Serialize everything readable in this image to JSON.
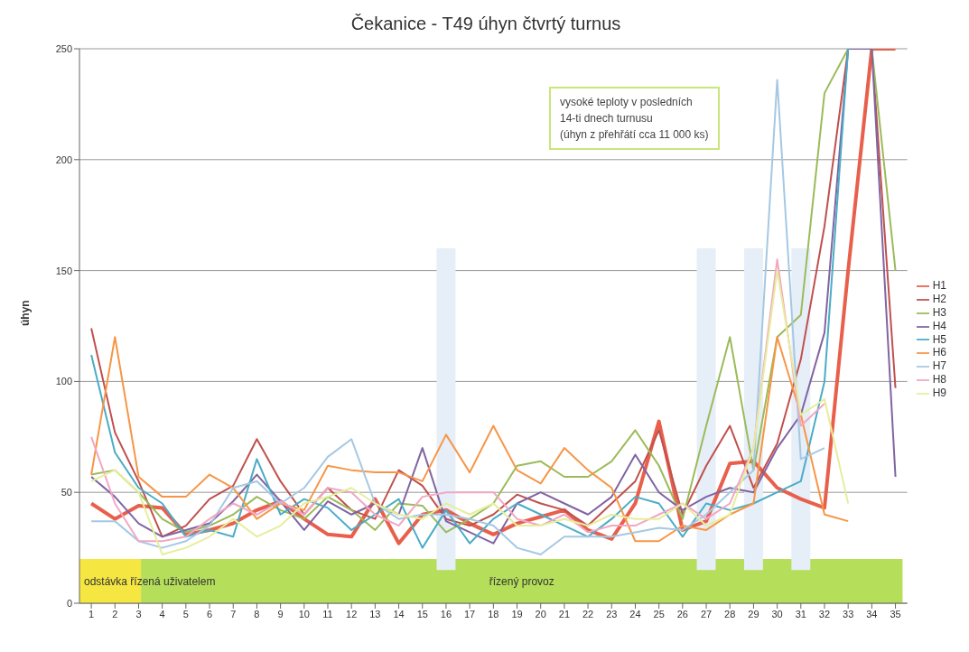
{
  "chart_data": {
    "type": "line",
    "title": "Čekanice - T49 úhyn čtvrtý turnus",
    "ylabel": "úhyn",
    "x": [
      1,
      2,
      3,
      4,
      5,
      6,
      7,
      8,
      9,
      10,
      11,
      12,
      13,
      14,
      15,
      16,
      17,
      18,
      19,
      20,
      21,
      22,
      23,
      24,
      25,
      26,
      27,
      28,
      29,
      30,
      31,
      32,
      33,
      34,
      35
    ],
    "xlim": [
      0.5,
      35.5
    ],
    "xticks": [
      1,
      2,
      3,
      4,
      5,
      6,
      7,
      8,
      9,
      10,
      11,
      12,
      13,
      14,
      15,
      16,
      17,
      18,
      19,
      20,
      21,
      22,
      23,
      24,
      25,
      26,
      27,
      28,
      29,
      30,
      31,
      32,
      33,
      34,
      35
    ],
    "ylim": [
      0,
      250
    ],
    "yticks": [
      0,
      50,
      100,
      150,
      200,
      250
    ],
    "grid": "y",
    "legend": "right",
    "marker": "none",
    "line_style": "solid",
    "annotations": [
      "vysoké teploty v posledních\n14-ti dnech turnusu\n(úhyn z přehřátí cca 11 000  ks)"
    ],
    "bands": [
      {
        "axis": "x",
        "from": 0.5,
        "to": 3.1,
        "label": "odstávka řízená uživatelem",
        "color": "#f5e642"
      },
      {
        "axis": "x",
        "from": 3.1,
        "to": 35.3,
        "label": "řízený provoz",
        "color": "#b5de5a"
      },
      {
        "axis": "x",
        "from": 15.6,
        "to": 16.4,
        "color": "#e6eef8"
      },
      {
        "axis": "x",
        "from": 26.6,
        "to": 27.4,
        "color": "#e6eef8"
      },
      {
        "axis": "x",
        "from": 28.6,
        "to": 29.4,
        "color": "#e6eef8"
      },
      {
        "axis": "x",
        "from": 30.6,
        "to": 31.4,
        "color": "#e6eef8"
      }
    ],
    "series": [
      {
        "name": "H1",
        "color": "#e8604c",
        "values": [
          45,
          38,
          44,
          43,
          31,
          33,
          36,
          42,
          46,
          38,
          31,
          30,
          47,
          27,
          40,
          42,
          36,
          31,
          36,
          39,
          42,
          33,
          29,
          45,
          82,
          33,
          37,
          63,
          64,
          52,
          47,
          43,
          150,
          250,
          250
        ]
      },
      {
        "name": "H2",
        "color": "#c0504d",
        "values": [
          124,
          77,
          55,
          30,
          35,
          47,
          53,
          74,
          55,
          40,
          52,
          42,
          38,
          60,
          53,
          38,
          35,
          40,
          49,
          45,
          42,
          35,
          45,
          55,
          78,
          40,
          62,
          80,
          52,
          72,
          110,
          170,
          250,
          250,
          97
        ]
      },
      {
        "name": "H3",
        "color": "#9bbb59",
        "values": [
          58,
          60,
          50,
          38,
          32,
          35,
          40,
          48,
          42,
          38,
          48,
          42,
          33,
          45,
          44,
          32,
          38,
          45,
          62,
          64,
          57,
          57,
          64,
          78,
          62,
          38,
          80,
          120,
          60,
          120,
          130,
          230,
          250,
          250,
          150
        ]
      },
      {
        "name": "H4",
        "color": "#8064a2",
        "values": [
          57,
          48,
          36,
          30,
          33,
          36,
          46,
          58,
          46,
          33,
          46,
          40,
          45,
          40,
          70,
          37,
          32,
          27,
          45,
          50,
          45,
          40,
          48,
          67,
          50,
          42,
          48,
          52,
          50,
          70,
          85,
          122,
          250,
          250,
          57
        ]
      },
      {
        "name": "H5",
        "color": "#4bacc6",
        "values": [
          112,
          68,
          52,
          45,
          30,
          33,
          30,
          65,
          40,
          47,
          43,
          33,
          40,
          47,
          25,
          42,
          27,
          38,
          45,
          40,
          35,
          30,
          38,
          48,
          45,
          30,
          45,
          42,
          45,
          50,
          55,
          100,
          250,
          null,
          null
        ]
      },
      {
        "name": "H6",
        "color": "#f79646",
        "values": [
          58,
          120,
          57,
          48,
          48,
          58,
          52,
          38,
          45,
          42,
          62,
          60,
          59,
          59,
          55,
          76,
          59,
          80,
          60,
          54,
          70,
          60,
          52,
          28,
          28,
          35,
          33,
          40,
          45,
          120,
          85,
          40,
          37,
          null,
          null
        ]
      },
      {
        "name": "H7",
        "color": "#a5c8e4",
        "values": [
          37,
          37,
          28,
          25,
          28,
          35,
          52,
          55,
          45,
          52,
          66,
          74,
          45,
          38,
          40,
          40,
          38,
          35,
          25,
          22,
          30,
          30,
          30,
          32,
          34,
          33,
          40,
          50,
          60,
          236,
          65,
          70,
          null,
          null,
          null
        ]
      },
      {
        "name": "H8",
        "color": "#f2a7c3",
        "values": [
          75,
          45,
          28,
          28,
          30,
          38,
          45,
          40,
          46,
          40,
          52,
          50,
          40,
          35,
          48,
          50,
          50,
          50,
          38,
          35,
          40,
          32,
          35,
          35,
          40,
          45,
          38,
          45,
          70,
          155,
          80,
          90,
          null,
          null,
          null
        ]
      },
      {
        "name": "H9",
        "color": "#e6ee9c",
        "values": [
          55,
          60,
          50,
          22,
          25,
          30,
          38,
          30,
          35,
          45,
          48,
          52,
          45,
          40,
          38,
          45,
          40,
          45,
          35,
          35,
          38,
          35,
          40,
          38,
          38,
          45,
          35,
          40,
          70,
          150,
          85,
          92,
          45,
          null,
          null
        ]
      }
    ]
  }
}
